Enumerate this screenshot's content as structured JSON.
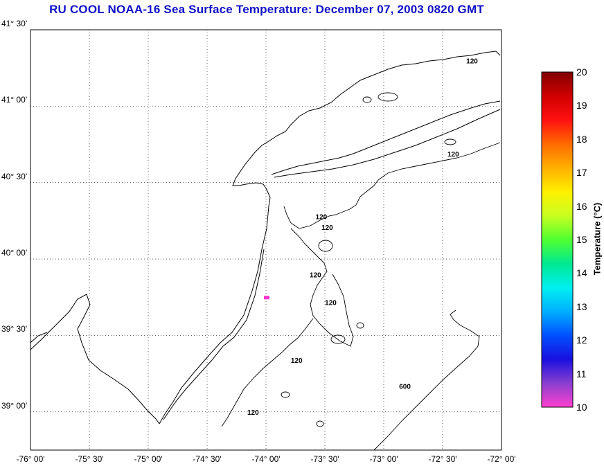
{
  "title": "RU COOL  NOAA-16  Sea Surface Temperature:  December 07, 2003 0820 GMT",
  "map": {
    "lat_labels": [
      {
        "text": "41° 30'",
        "lat": 41.5
      },
      {
        "text": "41° 00'",
        "lat": 41.0
      },
      {
        "text": "40° 30'",
        "lat": 40.5
      },
      {
        "text": "40° 00'",
        "lat": 40.0
      },
      {
        "text": "39° 30'",
        "lat": 39.5
      },
      {
        "text": "39° 00'",
        "lat": 39.0
      }
    ],
    "lon_labels": [
      {
        "text": "-76° 00'",
        "lon": -76.0
      },
      {
        "text": "-75° 30'",
        "lon": -75.5
      },
      {
        "text": "-75° 00'",
        "lon": -75.0
      },
      {
        "text": "-74° 30'",
        "lon": -74.5
      },
      {
        "text": "-74° 00'",
        "lon": -74.0
      },
      {
        "text": "-73° 30'",
        "lon": -73.5
      },
      {
        "text": "-73° 00'",
        "lon": -73.0
      },
      {
        "text": "-72° 30'",
        "lon": -72.5
      },
      {
        "text": "-72° 00'",
        "lon": -72.0
      }
    ],
    "lat_range": [
      38.75,
      41.5
    ],
    "lon_range": [
      -76.0,
      -72.0
    ],
    "grid": "dotted",
    "contour_labels": [
      {
        "text": "120",
        "lon": -72.25,
        "lat": 41.28
      },
      {
        "text": "120",
        "lon": -72.41,
        "lat": 40.67
      },
      {
        "text": "120",
        "lon": -73.53,
        "lat": 40.26
      },
      {
        "text": "120",
        "lon": -73.48,
        "lat": 40.19
      },
      {
        "text": "120",
        "lon": -73.58,
        "lat": 39.88
      },
      {
        "text": "120",
        "lon": -73.45,
        "lat": 39.7
      },
      {
        "text": "120",
        "lon": -73.74,
        "lat": 39.32
      },
      {
        "text": "120",
        "lon": -74.11,
        "lat": 38.98
      },
      {
        "text": "600",
        "lon": -72.82,
        "lat": 39.15
      }
    ],
    "sst_pixels": {
      "lon": -74.0,
      "lat": 39.75,
      "color": "#ff33cc"
    }
  },
  "colorbar": {
    "title": "Temperature (°C)",
    "ticks": [
      "20",
      "19",
      "18",
      "17",
      "16",
      "15",
      "14",
      "13",
      "12",
      "11",
      "10"
    ],
    "range": [
      10,
      20
    ],
    "colors": [
      "#ff40d0",
      "#8a3fd0",
      "#1a10e0",
      "#0050ff",
      "#00b0ff",
      "#00f0f0",
      "#00e890",
      "#50ff30",
      "#c8ff20",
      "#fff000",
      "#ffb000",
      "#ff6a00",
      "#ff1010",
      "#d00000",
      "#800000"
    ]
  }
}
